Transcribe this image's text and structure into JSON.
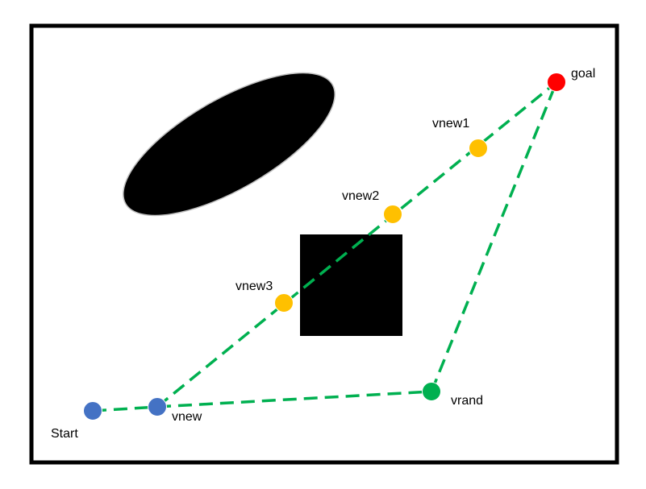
{
  "diagram": {
    "border_color": "#000000",
    "path_color": "#00b050",
    "obstacle_color": "#000000",
    "nodes": {
      "start": {
        "label": "Start",
        "color": "#4472c4"
      },
      "vnew": {
        "label": "vnew",
        "color": "#4472c4"
      },
      "vnew3": {
        "label": "vnew3",
        "color": "#ffc000"
      },
      "vnew2": {
        "label": "vnew2",
        "color": "#ffc000"
      },
      "vnew1": {
        "label": "vnew1",
        "color": "#ffc000"
      },
      "goal": {
        "label": "goal",
        "color": "#ff0000"
      },
      "vrand": {
        "label": "vrand",
        "color": "#00b050"
      }
    },
    "obstacles": [
      "ellipse",
      "square"
    ]
  }
}
